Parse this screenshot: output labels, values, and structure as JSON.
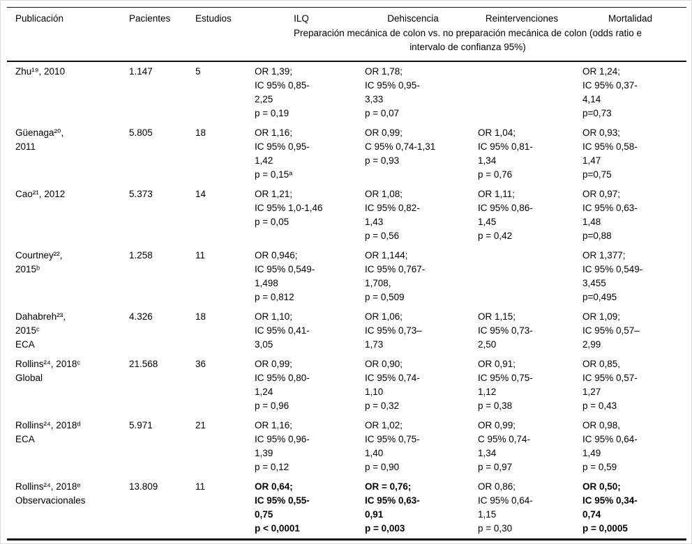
{
  "table": {
    "columns": [
      "Publicación",
      "Pacientes",
      "Estudios",
      "ILQ",
      "Dehiscencia",
      "Reintervenciones",
      "Mortalidad"
    ],
    "subheader": "Preparación mecánica de colon vs. no preparación mecánica de colon (odds ratio e\nintervalo de confianza 95%)",
    "rows": [
      {
        "cells": [
          {
            "text": "Zhu¹⁹, 2010"
          },
          {
            "text": "1.147"
          },
          {
            "text": "5"
          },
          {
            "text": "OR 1,39;\nIC 95% 0,85-\n2,25\np = 0,19"
          },
          {
            "text": "OR 1,78;\nIC 95% 0,95-\n3,33\np = 0,07"
          },
          {
            "text": ""
          },
          {
            "text": "OR 1,24;\nIC 95% 0,37-\n4,14\np=0,73"
          }
        ]
      },
      {
        "cells": [
          {
            "text": "Güenaga²⁰,\n2011"
          },
          {
            "text": "5.805"
          },
          {
            "text": "18"
          },
          {
            "text": "OR 1,16;\nIC 95% 0,95-\n1,42\np = 0,15ᵃ"
          },
          {
            "text": "OR 0,99;\nC 95% 0,74-1,31\np = 0,93"
          },
          {
            "text": "OR 1,04;\nIC 95% 0,81-\n1,34\np = 0,76"
          },
          {
            "text": "OR 0,93;\nIC 95% 0,58-\n1,47\np=0,75"
          }
        ]
      },
      {
        "cells": [
          {
            "text": "Cao²¹, 2012"
          },
          {
            "text": "5.373"
          },
          {
            "text": "14"
          },
          {
            "text": "OR 1,21;\nIC 95% 1,0-1,46\np = 0,05"
          },
          {
            "text": "OR 1,08;\nIC 95% 0,82-\n1,43\np = 0,56"
          },
          {
            "text": "OR 1,11;\nIC 95% 0,86-\n1,45\np = 0,42"
          },
          {
            "text": "OR 0,97;\nIC 95% 0,63-\n1,48\np=0,88"
          }
        ]
      },
      {
        "cells": [
          {
            "text": "Courtney²²,\n2015ᵇ"
          },
          {
            "text": "1.258"
          },
          {
            "text": "11"
          },
          {
            "text": "OR 0,946;\nIC 95% 0,549-\n1,498\np = 0,812"
          },
          {
            "text": "OR 1,144;\nIC 95% 0,767-\n1,708,\np = 0,509"
          },
          {
            "text": ""
          },
          {
            "text": "OR 1,377;\nIC 95% 0,549-\n3,455\np=0,495"
          }
        ]
      },
      {
        "cells": [
          {
            "text": "Dahabreh²³,\n2015ᶜ\nECA"
          },
          {
            "text": "4.326"
          },
          {
            "text": "18"
          },
          {
            "text": "OR 1,10;\nIC 95% 0,41-\n3,05"
          },
          {
            "text": "OR 1,06;\nIC 95% 0,73–\n1,73"
          },
          {
            "text": "OR 1,15;\nIC 95% 0,73-\n2,50"
          },
          {
            "text": "OR 1,09;\nIC 95% 0,57–\n2,99"
          }
        ]
      },
      {
        "cells": [
          {
            "text": "Rollins²⁴, 2018ᶜ\nGlobal"
          },
          {
            "text": "21.568"
          },
          {
            "text": "36"
          },
          {
            "text": "OR 0,99;\nIC 95% 0,80-\n1,24\np = 0,96"
          },
          {
            "text": "OR 0,90;\nIC 95% 0,74-\n1,10\np = 0,32"
          },
          {
            "text": "OR 0,91;\nIC 95% 0,75-\n1,12\np = 0,38"
          },
          {
            "text": "OR 0,85,\nIC 95% 0,57-\n1,27\np = 0,43"
          }
        ]
      },
      {
        "cells": [
          {
            "text": "Rollins²⁴, 2018ᵈ\nECA"
          },
          {
            "text": "5.971"
          },
          {
            "text": "21"
          },
          {
            "text": "OR 1,16;\nIC 95% 0,96-\n1,39\np = 0,12"
          },
          {
            "text": "OR 1,02;\nIC 95% 0,75-\n1,40\np = 0,90"
          },
          {
            "text": "OR 0,99;\nC 95% 0,74-\n1,34\np = 0,97"
          },
          {
            "text": "OR 0,98,\nIC 95% 0,64-\n1,49\np = 0,59"
          }
        ]
      },
      {
        "cells": [
          {
            "text": "Rollins²⁴, 2018ᵉ\nObservacionales"
          },
          {
            "text": "13.809"
          },
          {
            "text": "11"
          },
          {
            "text": "OR 0,64;\nIC 95% 0,55-\n0,75\np < 0,0001",
            "bold": true
          },
          {
            "text": "OR = 0,76;\nIC 95% 0,63-\n0,91\np = 0,003",
            "bold": true
          },
          {
            "text": "OR 0,86;\nIC 95% 0,64-\n1,15\np = 0,30"
          },
          {
            "text": "OR 0,50;\nIC 95% 0,34-\n0,74\np = 0,0005",
            "bold": true
          }
        ]
      }
    ]
  }
}
